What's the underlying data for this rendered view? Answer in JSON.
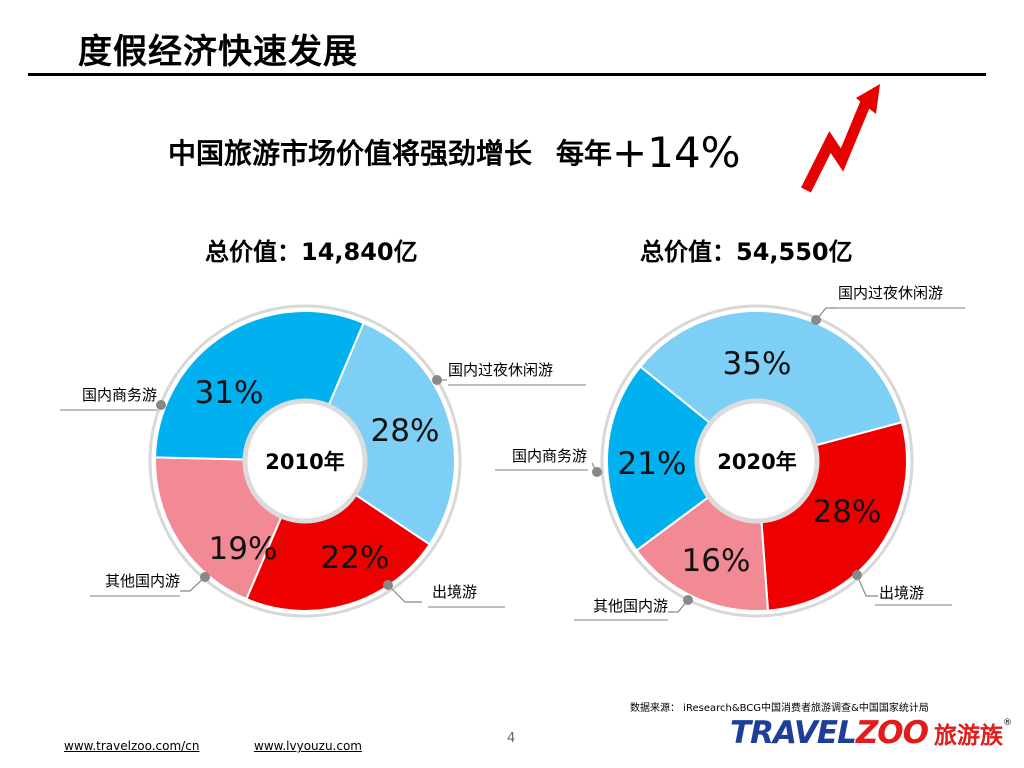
{
  "page": {
    "title": "度假经济快速发展",
    "headline": "中国旅游市场价值将强劲增长",
    "headline_suffix": "每年",
    "growth": "+14%",
    "source": "数据来源： iResearch&BCG中国消费者旅游调查&中国国家统计局",
    "page_number": "4",
    "links": [
      "www.travelzoo.com/cn",
      "www.lvyouzu.com"
    ],
    "logo": {
      "en_part1": "TRAVEL",
      "en_part2": "ZOO",
      "cn": "旅游族",
      "reg": "®"
    }
  },
  "chart_data": [
    {
      "type": "pie",
      "donut": true,
      "title": "总价值：14,840亿",
      "center_label": "2010年",
      "slices": [
        {
          "name": "国内过夜休闲游",
          "value": 28,
          "label": "28%",
          "color": "#7dcff5"
        },
        {
          "name": "出境游",
          "value": 22,
          "label": "22%",
          "color": "#ee0000"
        },
        {
          "name": "其他国内游",
          "value": 19,
          "label": "19%",
          "color": "#f28a96"
        },
        {
          "name": "国内商务游",
          "value": 31,
          "label": "31%",
          "color": "#00b0ef"
        }
      ]
    },
    {
      "type": "pie",
      "donut": true,
      "title": "总价值：54,550亿",
      "center_label": "2020年",
      "slices": [
        {
          "name": "出境游",
          "value": 28,
          "label": "28%",
          "color": "#ee0000"
        },
        {
          "name": "其他国内游",
          "value": 16,
          "label": "16%",
          "color": "#f28a96"
        },
        {
          "name": "国内商务游",
          "value": 21,
          "label": "21%",
          "color": "#00b0ef"
        },
        {
          "name": "国内过夜休闲游",
          "value": 35,
          "label": "35%",
          "color": "#7dcff5"
        }
      ]
    }
  ]
}
